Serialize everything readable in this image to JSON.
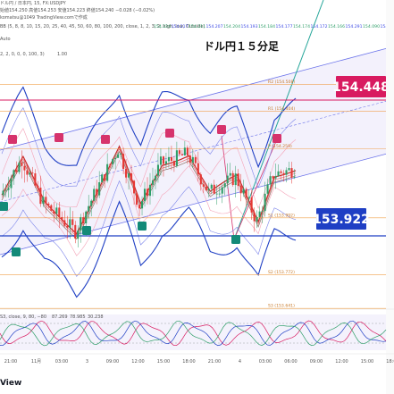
{
  "app": {
    "header_line1": "ドル円 / 日本円, 15, FX:USDJPY",
    "header_ohlc": "始値154.250 高値154.253 安値154.223 終値154.240 −0.028 (−0.02%)",
    "watermark_credit": "komatsu@1049 TradingView.comで作成",
    "indicator_line": "BB (5, 8, 8, 10, 15, 20, 25, 40, 45, 50, 60, 80, 100, 200, close, 1, 2, 3, 2, high, low, Outside)",
    "indicator_line2": "Auto",
    "indicator_line3": "2, 2, 0, 0, 0, 100, 3)",
    "indicator_value": "1.00",
    "brand_fragment": "View"
  },
  "chart_data": {
    "type": "candlestick",
    "title": "ドル円１５分足",
    "price_labels": {
      "upper_value": 154.448,
      "lower_value": 153.922,
      "upper_color": "#d81b60",
      "lower_color": "#1f3fc4"
    },
    "pivot_levels": [
      {
        "label": "R2 (154.508)",
        "value": 154.508
      },
      {
        "label": "R1 (154.404)",
        "value": 154.404
      },
      {
        "label": "P (154.259)",
        "value": 154.259
      },
      {
        "label": "S1 (153.992)",
        "value": 153.992
      },
      {
        "label": "S2 (153.772)",
        "value": 153.772
      },
      {
        "label": "S3 (153.641)",
        "value": 153.641
      }
    ],
    "top_row_values": [
      "154.224",
      "154.217",
      "154.211",
      "154.207",
      "154.204",
      "154.193",
      "154.184",
      "154.177",
      "154.174",
      "154.172",
      "154.166",
      "154.291",
      "154.090",
      "154.258"
    ],
    "time_ticks": [
      "21:00",
      "11月",
      "03:00",
      "3",
      "09:00",
      "12:00",
      "15:00",
      "18:00",
      "21:00",
      "4",
      "03:00",
      "06:00",
      "09:00",
      "12:00",
      "15:00",
      "18:00"
    ],
    "oscillator": {
      "name_line": "S3, close, 9, 80, −80",
      "values": [
        "87.269",
        "78.985",
        "30.238"
      ],
      "level_upper": 80,
      "level_lower": -80
    },
    "colors": {
      "up": "#2e9e68",
      "down": "#e53935",
      "upper_marker": "#d6336c",
      "lower_marker": "#138a78",
      "channel": "#3b49e4"
    },
    "ylim": [
      153.55,
      154.62
    ]
  }
}
